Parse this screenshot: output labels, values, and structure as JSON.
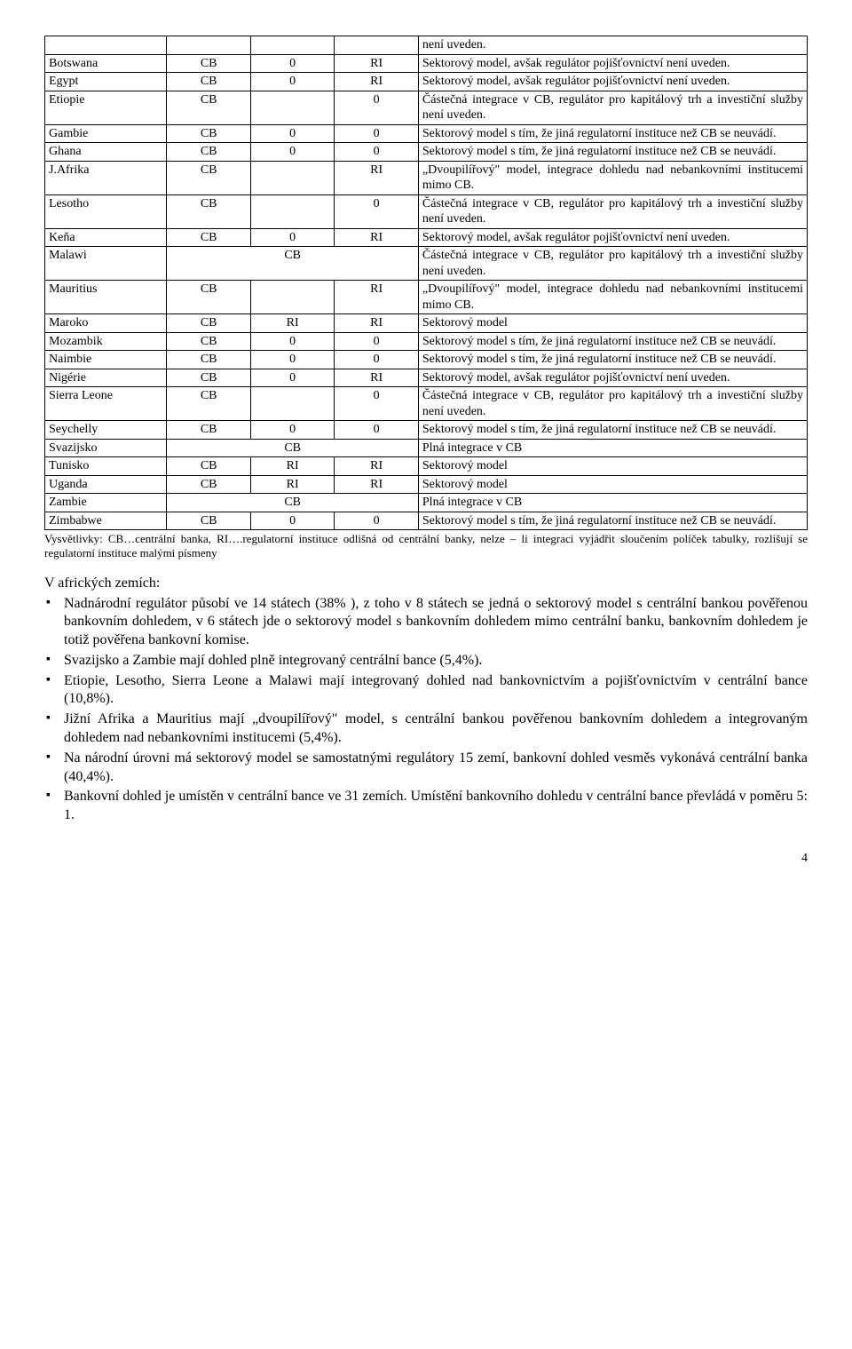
{
  "table": {
    "rows": [
      {
        "c1": "",
        "c2": "",
        "c3": "",
        "c4": "",
        "c5": "není uveden."
      },
      {
        "c1": "Botswana",
        "c2": "CB",
        "c3": "0",
        "c4": "RI",
        "c5": "Sektorový model, avšak regulátor pojišťovnictví není uveden."
      },
      {
        "c1": "Egypt",
        "c2": "CB",
        "c3": "0",
        "c4": "RI",
        "c5": "Sektorový model, avšak regulátor pojišťovnictví není uveden."
      },
      {
        "c1": "Etiopie",
        "c2": "CB",
        "c3": "",
        "c4": "0",
        "c5": "Částečná integrace v CB, regulátor pro kapitálový trh a investiční služby není uveden."
      },
      {
        "c1": "Gambie",
        "c2": "CB",
        "c3": "0",
        "c4": "0",
        "c5": "Sektorový model s tím, že jiná regulatorní instituce než CB se neuvádí."
      },
      {
        "c1": "Ghana",
        "c2": "CB",
        "c3": "0",
        "c4": "0",
        "c5": "Sektorový model s tím, že jiná regulatorní instituce než CB se neuvádí."
      },
      {
        "c1": "J.Afrika",
        "c2": "CB",
        "c3": "",
        "c4": "RI",
        "c5": "„Dvoupilířový\" model, integrace dohledu nad nebankovními institucemi mimo CB."
      },
      {
        "c1": "Lesotho",
        "c2": "CB",
        "c3": "",
        "c4": "0",
        "c5": "Částečná integrace v CB, regulátor pro kapitálový trh a investiční služby není uveden."
      },
      {
        "c1": "Keňa",
        "c2": "CB",
        "c3": "0",
        "c4": "RI",
        "c5": "Sektorový model, avšak regulátor pojišťovnictví není uveden."
      },
      {
        "c1": "Malawi",
        "c2": "",
        "c3": "CB",
        "c4": "",
        "c5": "Částečná integrace v CB, regulátor pro kapitálový trh a investiční služby není uveden."
      },
      {
        "c1": "Mauritius",
        "c2": "CB",
        "c3": "",
        "c4": "RI",
        "c5": "„Dvoupilířový\" model, integrace dohledu nad nebankovními institucemi mimo CB."
      },
      {
        "c1": "Maroko",
        "c2": "CB",
        "c3": "RI",
        "c4": "RI",
        "c5": "Sektorový model"
      },
      {
        "c1": "Mozambik",
        "c2": "CB",
        "c3": "0",
        "c4": "0",
        "c5": "Sektorový model s tím, že jiná regulatorní instituce než CB se neuvádí."
      },
      {
        "c1": "Naimbie",
        "c2": "CB",
        "c3": "0",
        "c4": "0",
        "c5": "Sektorový model s tím, že jiná regulatorní instituce než CB se neuvádí."
      },
      {
        "c1": "Nigérie",
        "c2": "CB",
        "c3": "0",
        "c4": "RI",
        "c5": "Sektorový model, avšak regulátor pojišťovnictví není uveden."
      },
      {
        "c1": "Sierra Leone",
        "c2": "CB",
        "c3": "",
        "c4": "0",
        "c5": "Částečná integrace v CB, regulátor pro kapitálový trh a investiční služby není uveden."
      },
      {
        "c1": "Seychelly",
        "c2": "CB",
        "c3": "0",
        "c4": "0",
        "c5": "Sektorový model s tím, že jiná regulatorní instituce než CB se neuvádí."
      },
      {
        "c1": "Svazijsko",
        "c2": "",
        "c3": "CB",
        "c4": "",
        "c5": "Plná integrace v CB"
      },
      {
        "c1": "Tunisko",
        "c2": "CB",
        "c3": "RI",
        "c4": "RI",
        "c5": "Sektorový model"
      },
      {
        "c1": "Uganda",
        "c2": "CB",
        "c3": "RI",
        "c4": "RI",
        "c5": "Sektorový model"
      },
      {
        "c1": "Zambie",
        "c2": "",
        "c3": "CB",
        "c4": "",
        "c5": "Plná integrace v CB"
      },
      {
        "c1": "Zimbabwe",
        "c2": "CB",
        "c3": "0",
        "c4": "0",
        "c5": "Sektorový model s tím, že jiná regulatorní instituce než CB se neuvádí."
      }
    ],
    "span_rows": {
      "9": true,
      "17": true,
      "20": true
    }
  },
  "footnote": "Vysvětlivky: CB…centrální banka, RI….regulatorní instituce odlišná od centrální banky, nelze – li integraci vyjádřit sloučením políček tabulky, rozlišují se regulatorní instituce malými písmeny",
  "section_heading": "V afrických zemích:",
  "bullets": [
    "Nadnárodní  regulátor působí ve 14 státech (38% ), z toho v 8 státech se jedná o sektorový model s centrální bankou pověřenou bankovním dohledem, v 6 státech jde o sektorový model s bankovním dohledem mimo centrální banku,  bankovním dohledem je totiž pověřena bankovní komise.",
    "Svazijsko a Zambie mají dohled plně integrovaný centrální bance (5,4%).",
    "Etiopie, Lesotho, Sierra Leone a Malawi  mají integrovaný dohled nad bankovnictvím a pojišťovnictvím v centrální bance (10,8%).",
    "Jižní Afrika a Mauritius mají „dvoupilířový\" model, s centrální bankou pověřenou bankovním dohledem a integrovaným dohledem nad nebankovními institucemi (5,4%).",
    "Na národní úrovni má sektorový model se samostatnými regulátory 15 zemí, bankovní dohled vesměs vykonává centrální banka (40,4%).",
    "Bankovní dohled je umístěn v centrální bance ve 31 zemích. Umístění bankovního dohledu v centrální bance převládá v poměru 5: 1."
  ],
  "page_number": "4"
}
